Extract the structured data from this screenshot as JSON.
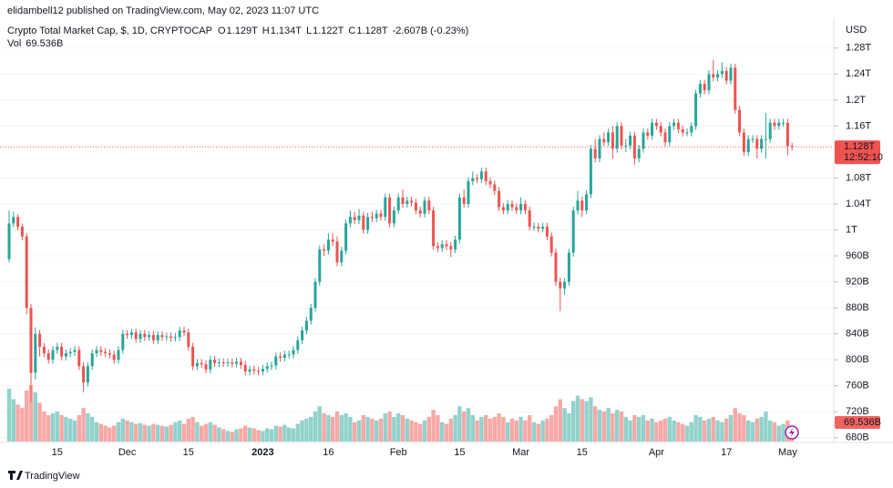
{
  "header": {
    "published": "elidambell12 published on TradingView.com, May 02, 2023 11:07 UTC",
    "brand": "TradingView"
  },
  "chart_data": {
    "type": "candlestick",
    "title": "Crypto Total Market Cap, $, 1D, CRYPTOCAP",
    "ohlc_legend": [
      {
        "key": "O",
        "value": "1.129T"
      },
      {
        "key": "H",
        "value": "1.134T"
      },
      {
        "key": "L",
        "value": "1.122T"
      },
      {
        "key": "C",
        "value": "1.128T"
      }
    ],
    "change": "-2.607B (-0.23%)",
    "volume_name": "Vol",
    "volume_label": "69.536B",
    "countdown": "12:52:10",
    "currency": "USD",
    "up_color": "#26a69a",
    "down_color": "#ef5350",
    "grid": true,
    "categories": [
      null,
      null,
      null,
      null,
      null,
      null,
      null,
      null,
      null,
      null,
      null,
      "15",
      null,
      null,
      null,
      null,
      null,
      null,
      null,
      null,
      null,
      null,
      null,
      null,
      null,
      null,
      null,
      "Dec",
      null,
      null,
      null,
      null,
      null,
      null,
      null,
      null,
      null,
      null,
      null,
      null,
      null,
      "15",
      null,
      null,
      null,
      null,
      null,
      null,
      null,
      null,
      null,
      null,
      null,
      null,
      null,
      null,
      null,
      null,
      "2023",
      null,
      null,
      null,
      null,
      null,
      null,
      null,
      null,
      null,
      null,
      null,
      null,
      null,
      null,
      "16",
      null,
      null,
      null,
      null,
      null,
      null,
      null,
      null,
      null,
      null,
      null,
      null,
      null,
      null,
      null,
      "Feb",
      null,
      null,
      null,
      null,
      null,
      null,
      null,
      null,
      null,
      null,
      null,
      null,
      null,
      "15",
      null,
      null,
      null,
      null,
      null,
      null,
      null,
      null,
      null,
      null,
      null,
      null,
      null,
      "Mar",
      null,
      null,
      null,
      null,
      null,
      null,
      null,
      null,
      null,
      null,
      null,
      null,
      null,
      "15",
      null,
      null,
      null,
      null,
      null,
      null,
      null,
      null,
      null,
      null,
      null,
      null,
      null,
      null,
      null,
      null,
      "Apr",
      null,
      null,
      null,
      null,
      null,
      null,
      null,
      null,
      null,
      null,
      null,
      null,
      null,
      null,
      null,
      "17",
      null,
      null,
      null,
      null,
      null,
      null,
      null,
      null,
      null,
      null,
      null,
      null,
      null,
      "May",
      null
    ],
    "open": [
      955,
      1010,
      1020,
      1005,
      990,
      880,
      780,
      840,
      820,
      810,
      800,
      815,
      820,
      805,
      810,
      812,
      815,
      790,
      765,
      790,
      810,
      815,
      812,
      810,
      808,
      800,
      815,
      840,
      838,
      842,
      832,
      840,
      835,
      838,
      830,
      838,
      835,
      836,
      834,
      835,
      845,
      842,
      820,
      790,
      795,
      793,
      785,
      800,
      795,
      796,
      795,
      796,
      794,
      797,
      792,
      782,
      785,
      783,
      782,
      786,
      790,
      791,
      805,
      803,
      808,
      808,
      815,
      830,
      845,
      860,
      880,
      920,
      970,
      968,
      985,
      982,
      950,
      968,
      1010,
      1020,
      1015,
      1022,
      1000,
      1020,
      1018,
      1025,
      1020,
      1050,
      1010,
      1030,
      1050,
      1040,
      1045,
      1042,
      1030,
      1025,
      1045,
      1030,
      975,
      972,
      978,
      975,
      970,
      985,
      1050,
      1040,
      1075,
      1080,
      1078,
      1090,
      1075,
      1070,
      1060,
      1035,
      1030,
      1040,
      1035,
      1030,
      1040,
      1030,
      1005,
      1005,
      1002,
      1005,
      990,
      965,
      920,
      910,
      920,
      965,
      1030,
      1045,
      1030,
      1055,
      1125,
      1110,
      1140,
      1135,
      1150,
      1125,
      1160,
      1130,
      1130,
      1145,
      1110,
      1125,
      1150,
      1145,
      1165,
      1160,
      1150,
      1135,
      1160,
      1165,
      1155,
      1150,
      1150,
      1160,
      1210,
      1225,
      1215,
      1240,
      1235,
      1240,
      1245,
      1230,
      1250,
      1185,
      1150,
      1120,
      1140,
      1140,
      1125,
      1140,
      1140,
      1165,
      1160,
      1165,
      1165,
      1129
    ],
    "high": [
      1030,
      1028,
      1024,
      1010,
      995,
      886,
      850,
      846,
      826,
      816,
      821,
      826,
      826,
      816,
      818,
      821,
      821,
      796,
      796,
      816,
      821,
      821,
      818,
      816,
      814,
      821,
      846,
      846,
      848,
      848,
      846,
      846,
      844,
      844,
      844,
      844,
      842,
      842,
      841,
      851,
      851,
      848,
      826,
      801,
      801,
      799,
      806,
      806,
      802,
      802,
      802,
      802,
      803,
      803,
      798,
      791,
      791,
      789,
      792,
      796,
      797,
      811,
      811,
      814,
      814,
      821,
      836,
      851,
      866,
      886,
      926,
      976,
      978,
      995,
      995,
      990,
      974,
      1016,
      1030,
      1028,
      1032,
      1028,
      1026,
      1028,
      1031,
      1031,
      1056,
      1056,
      1036,
      1056,
      1062,
      1051,
      1051,
      1048,
      1036,
      1051,
      1051,
      1036,
      981,
      984,
      984,
      981,
      991,
      1056,
      1062,
      1081,
      1090,
      1086,
      1096,
      1096,
      1081,
      1076,
      1066,
      1041,
      1046,
      1046,
      1041,
      1050,
      1046,
      1036,
      1011,
      1011,
      1011,
      1011,
      996,
      971,
      926,
      926,
      971,
      1036,
      1060,
      1051,
      1061,
      1131,
      1140,
      1146,
      1150,
      1156,
      1160,
      1166,
      1166,
      1140,
      1151,
      1151,
      1131,
      1156,
      1156,
      1171,
      1171,
      1166,
      1156,
      1166,
      1171,
      1171,
      1161,
      1156,
      1166,
      1216,
      1231,
      1231,
      1246,
      1262,
      1246,
      1258,
      1251,
      1256,
      1256,
      1191,
      1156,
      1146,
      1146,
      1146,
      1146,
      1180,
      1171,
      1171,
      1171,
      1171,
      1171,
      1134
    ],
    "low": [
      950,
      1004,
      999,
      984,
      870,
      735,
      770,
      805,
      804,
      794,
      794,
      809,
      799,
      799,
      804,
      806,
      784,
      750,
      759,
      784,
      804,
      806,
      804,
      802,
      794,
      794,
      809,
      832,
      832,
      826,
      826,
      829,
      829,
      824,
      824,
      829,
      829,
      828,
      828,
      829,
      836,
      814,
      784,
      784,
      787,
      779,
      779,
      789,
      789,
      789,
      789,
      788,
      788,
      786,
      776,
      776,
      777,
      776,
      776,
      780,
      784,
      785,
      797,
      797,
      802,
      802,
      809,
      824,
      839,
      854,
      874,
      914,
      960,
      962,
      975,
      944,
      944,
      962,
      1004,
      1009,
      1009,
      994,
      994,
      1012,
      1012,
      1014,
      1014,
      1004,
      1004,
      1024,
      1034,
      1034,
      1036,
      1024,
      1019,
      1019,
      1024,
      969,
      966,
      966,
      969,
      958,
      964,
      979,
      1034,
      1034,
      1069,
      1072,
      1072,
      1069,
      1064,
      1054,
      1029,
      1024,
      1024,
      1029,
      1024,
      1024,
      1024,
      999,
      999,
      996,
      996,
      984,
      959,
      914,
      875,
      900,
      914,
      959,
      1024,
      1020,
      1024,
      1049,
      1104,
      1104,
      1129,
      1129,
      1110,
      1119,
      1124,
      1120,
      1124,
      1100,
      1104,
      1119,
      1139,
      1139,
      1154,
      1144,
      1129,
      1129,
      1154,
      1149,
      1144,
      1144,
      1144,
      1154,
      1204,
      1209,
      1209,
      1229,
      1229,
      1234,
      1224,
      1224,
      1179,
      1144,
      1114,
      1114,
      1134,
      1110,
      1119,
      1110,
      1134,
      1154,
      1154,
      1159,
      1115,
      1122
    ],
    "close": [
      1010,
      1020,
      1005,
      990,
      880,
      780,
      840,
      820,
      810,
      800,
      815,
      820,
      805,
      810,
      812,
      815,
      790,
      765,
      790,
      810,
      815,
      812,
      810,
      808,
      800,
      815,
      840,
      838,
      842,
      832,
      840,
      835,
      838,
      830,
      838,
      835,
      836,
      834,
      835,
      845,
      842,
      820,
      790,
      795,
      793,
      785,
      800,
      795,
      796,
      795,
      796,
      794,
      797,
      792,
      782,
      785,
      783,
      782,
      786,
      790,
      791,
      805,
      803,
      808,
      808,
      815,
      830,
      845,
      860,
      880,
      920,
      970,
      968,
      985,
      982,
      950,
      968,
      1010,
      1020,
      1015,
      1022,
      1000,
      1020,
      1018,
      1025,
      1020,
      1050,
      1010,
      1030,
      1050,
      1040,
      1045,
      1042,
      1030,
      1025,
      1045,
      1030,
      975,
      972,
      978,
      975,
      970,
      985,
      1050,
      1040,
      1075,
      1080,
      1078,
      1090,
      1075,
      1070,
      1060,
      1035,
      1030,
      1040,
      1035,
      1030,
      1040,
      1030,
      1005,
      1005,
      1002,
      1005,
      990,
      965,
      920,
      910,
      920,
      965,
      1030,
      1045,
      1030,
      1055,
      1125,
      1110,
      1140,
      1135,
      1150,
      1125,
      1160,
      1130,
      1130,
      1145,
      1110,
      1125,
      1150,
      1145,
      1165,
      1160,
      1150,
      1135,
      1160,
      1165,
      1155,
      1150,
      1150,
      1160,
      1210,
      1225,
      1215,
      1240,
      1235,
      1240,
      1245,
      1230,
      1250,
      1185,
      1150,
      1120,
      1140,
      1140,
      1125,
      1140,
      1140,
      1165,
      1160,
      1165,
      1165,
      1129,
      1128
    ],
    "volume": [
      300,
      240,
      210,
      190,
      290,
      320,
      280,
      220,
      170,
      150,
      160,
      170,
      150,
      140,
      130,
      120,
      150,
      190,
      160,
      140,
      110,
      100,
      90,
      80,
      90,
      110,
      130,
      120,
      110,
      100,
      105,
      95,
      90,
      100,
      95,
      90,
      85,
      95,
      110,
      120,
      100,
      130,
      140,
      110,
      90,
      100,
      110,
      95,
      80,
      70,
      60,
      55,
      70,
      75,
      90,
      80,
      75,
      65,
      60,
      75,
      70,
      90,
      85,
      95,
      80,
      75,
      100,
      120,
      130,
      140,
      170,
      200,
      160,
      150,
      140,
      170,
      150,
      160,
      140,
      110,
      120,
      150,
      140,
      130,
      120,
      130,
      160,
      170,
      140,
      160,
      150,
      130,
      120,
      110,
      100,
      120,
      140,
      180,
      150,
      110,
      100,
      130,
      150,
      200,
      170,
      190,
      150,
      120,
      140,
      150,
      130,
      140,
      160,
      140,
      110,
      130,
      120,
      140,
      120,
      150,
      110,
      100,
      120,
      130,
      150,
      200,
      240,
      190,
      160,
      230,
      260,
      240,
      230,
      250,
      200,
      180,
      170,
      190,
      160,
      180,
      170,
      140,
      120,
      150,
      140,
      150,
      120,
      130,
      110,
      120,
      130,
      140,
      120,
      110,
      100,
      90,
      110,
      150,
      140,
      120,
      130,
      140,
      120,
      110,
      130,
      150,
      190,
      160,
      150,
      120,
      110,
      130,
      140,
      170,
      120,
      110,
      90,
      100,
      120,
      69.536
    ],
    "ylim": [
      660,
      1326
    ],
    "yticks": [
      {
        "value": 680,
        "label": "680B"
      },
      {
        "value": 720,
        "label": "720B"
      },
      {
        "value": 760,
        "label": "760B"
      },
      {
        "value": 800,
        "label": "800B"
      },
      {
        "value": 840,
        "label": "840B"
      },
      {
        "value": 880,
        "label": "880B"
      },
      {
        "value": 920,
        "label": "920B"
      },
      {
        "value": 960,
        "label": "960B"
      },
      {
        "value": 1000,
        "label": "1T"
      },
      {
        "value": 1040,
        "label": "1.04T"
      },
      {
        "value": 1080,
        "label": "1.08T"
      },
      {
        "value": 1160,
        "label": "1.16T"
      },
      {
        "value": 1200,
        "label": "1.2T"
      },
      {
        "value": 1240,
        "label": "1.24T"
      },
      {
        "value": 1280,
        "label": "1.28T"
      }
    ]
  }
}
